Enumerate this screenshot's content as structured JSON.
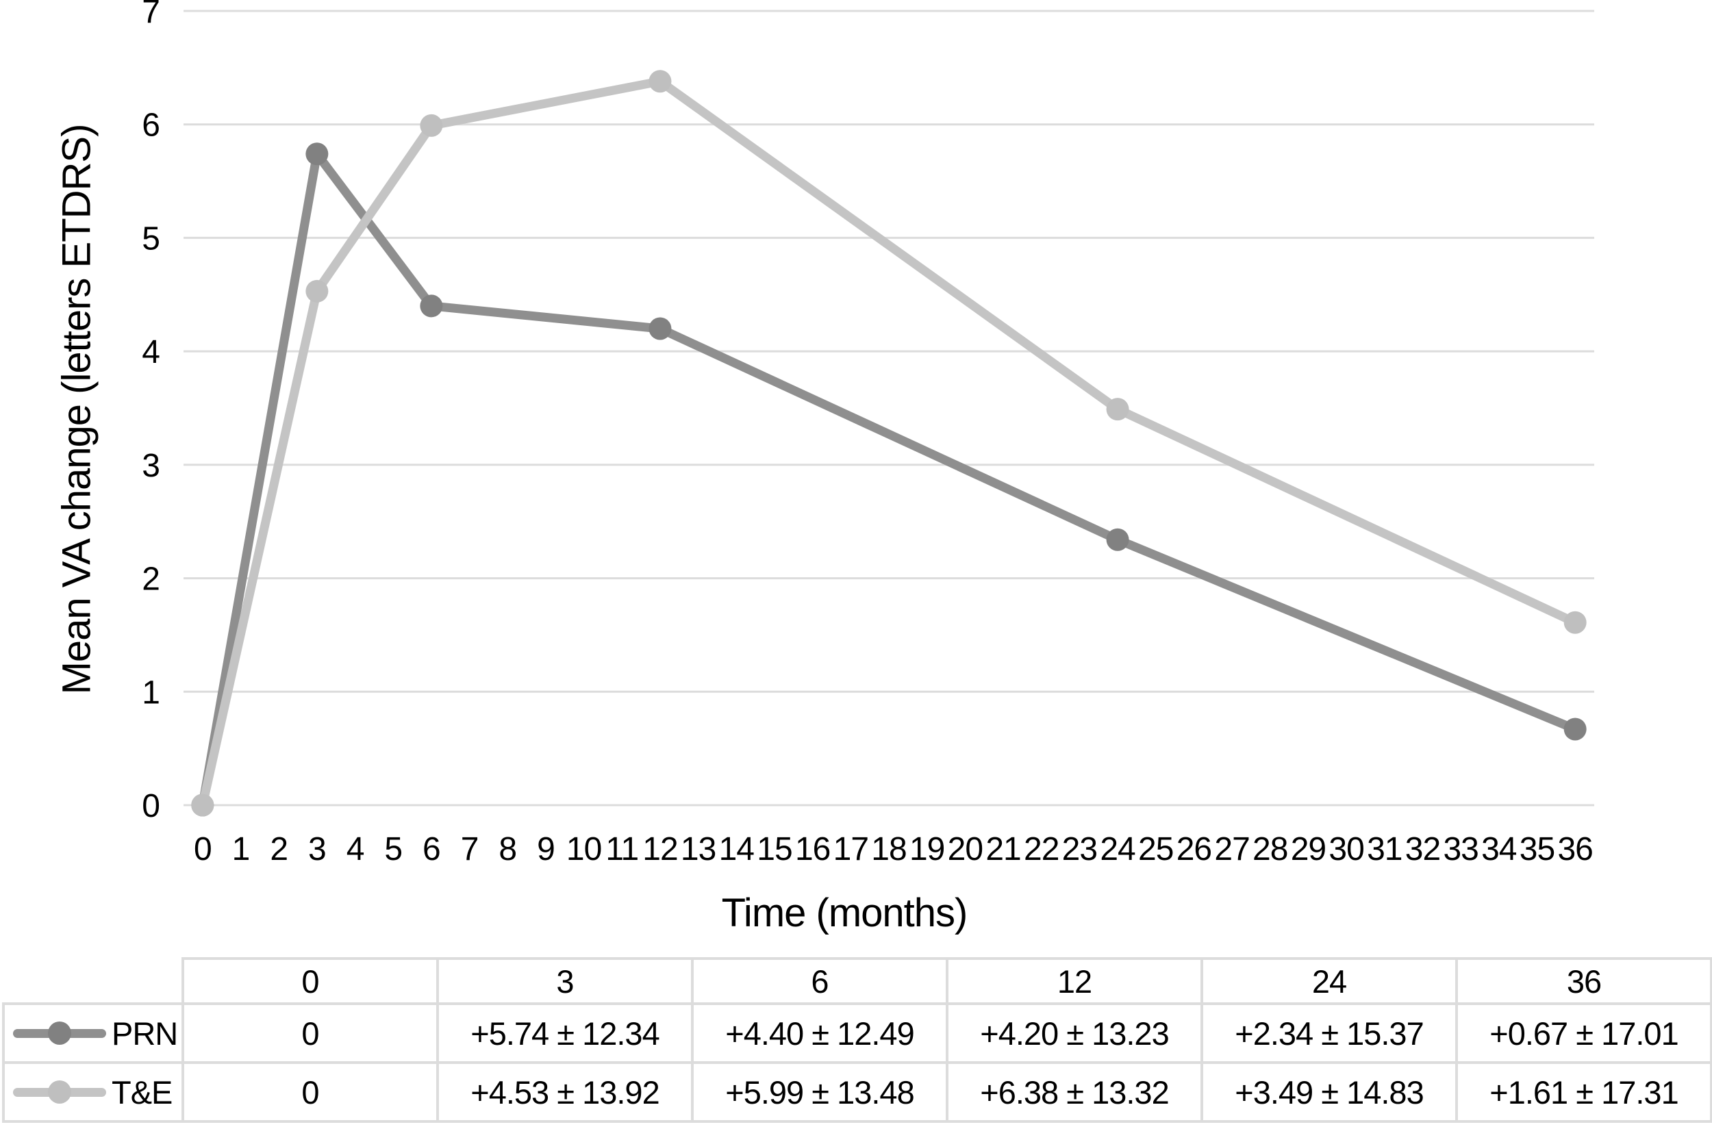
{
  "chart_data": {
    "type": "line",
    "title": "",
    "xlabel": "Time (months)",
    "ylabel": "Mean VA change (letters ETDRS)",
    "x": [
      0,
      3,
      6,
      12,
      24,
      36
    ],
    "series": [
      {
        "name": "PRN",
        "values": [
          0,
          5.74,
          4.4,
          4.2,
          2.34,
          0.67
        ],
        "sd": [
          null,
          12.34,
          12.49,
          13.23,
          15.37,
          17.01
        ],
        "line_color": "#8f8f8f",
        "marker_color": "#818181"
      },
      {
        "name": "T&E",
        "values": [
          0,
          4.53,
          5.99,
          6.38,
          3.49,
          1.61
        ],
        "sd": [
          null,
          13.92,
          13.48,
          13.32,
          14.83,
          17.31
        ],
        "line_color": "#c4c4c4",
        "marker_color": "#bfbfbf"
      }
    ],
    "ylim": [
      0,
      7
    ],
    "y_ticks": [
      0,
      1,
      2,
      3,
      4,
      5,
      6,
      7
    ],
    "x_ticks": [
      0,
      1,
      2,
      3,
      4,
      5,
      6,
      7,
      8,
      9,
      10,
      11,
      12,
      13,
      14,
      15,
      16,
      17,
      18,
      19,
      20,
      21,
      22,
      23,
      24,
      25,
      26,
      27,
      28,
      29,
      30,
      31,
      32,
      33,
      34,
      35,
      36
    ],
    "grid": true,
    "legend_position": "table-left"
  },
  "table": {
    "header": [
      "0",
      "3",
      "6",
      "12",
      "24",
      "36"
    ],
    "rows": [
      {
        "label": "PRN",
        "cells": [
          "0",
          "+5.74 ± 12.34",
          "+4.40 ± 12.49",
          "+4.20 ± 13.23",
          "+2.34 ± 15.37",
          "+0.67 ± 17.01"
        ]
      },
      {
        "label": "T&E",
        "cells": [
          "0",
          "+4.53 ± 13.92",
          "+5.99 ± 13.48",
          "+6.38 ± 13.32",
          "+3.49 ± 14.83",
          "+1.61 ± 17.31"
        ]
      }
    ]
  },
  "colors": {
    "gridline": "#dcdcdc",
    "table_border": "#dcdcdc",
    "text": "#000000",
    "background": "#ffffff"
  }
}
